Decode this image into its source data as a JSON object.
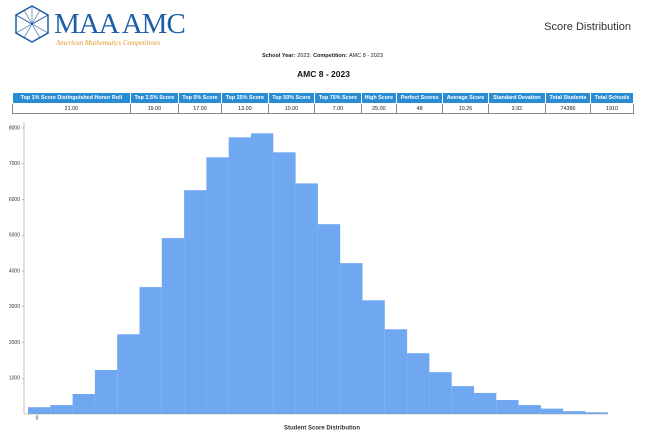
{
  "header": {
    "logo": "MAA AMC",
    "logo_subtitle": "American Mathematics Competitions",
    "page_title": "Score Distribution"
  },
  "info": [
    {
      "label": "School Year:",
      "value": "2023;"
    },
    {
      "label": "Competition:",
      "value": "AMC 8 - 2023"
    }
  ],
  "report_title": "AMC 8 - 2023",
  "table": {
    "columns": [
      "Top 1% Score Distinguished Honor Roll",
      "Top 2.5% Score",
      "Top 5% Score",
      "Top 25% Score",
      "Top 50% Score",
      "Top 75% Score",
      "High Score",
      "Perfect Scores",
      "Average Score",
      "Standard Devation",
      "Total Students",
      "Total Schools"
    ],
    "rows": [
      [
        "21.00",
        "19.00",
        "17.00",
        "13.00",
        "10.00",
        "7.00",
        "25.00",
        "48",
        "10.26",
        "3.92",
        "74386",
        "1910"
      ]
    ]
  },
  "chart_data": {
    "type": "bar",
    "x_label": "Student Score Distribution",
    "categories": [
      "0",
      null,
      null,
      null,
      null,
      null,
      null,
      null,
      null,
      null,
      null,
      null,
      null,
      null,
      null,
      null,
      null,
      null,
      null,
      null,
      null,
      null,
      null,
      null,
      null,
      null
    ],
    "values": [
      190,
      250,
      560,
      1230,
      2230,
      3550,
      4920,
      6260,
      7180,
      7740,
      7850,
      7320,
      6450,
      5310,
      4220,
      3180,
      2370,
      1700,
      1170,
      780,
      590,
      390,
      250,
      150,
      80,
      48
    ],
    "color": "#6fa7f1",
    "ylim": [
      0,
      8000
    ],
    "yticks": [
      1000,
      2000,
      3000,
      4000,
      5000,
      6000,
      7000,
      8000
    ]
  }
}
